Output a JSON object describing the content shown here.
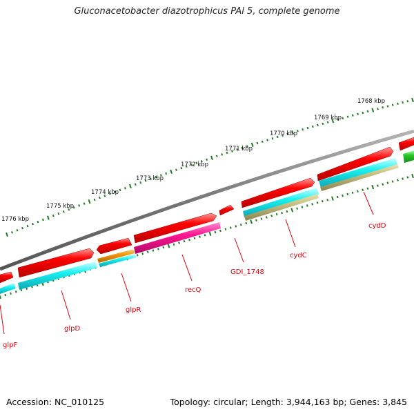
{
  "title": "Gluconacetobacter diazotrophicus PAl 5, complete genome",
  "footer": {
    "accession": "Accession: NC_010125",
    "topology": "Topology: circular; Length: 3,944,163 bp; Genes: 3,845"
  },
  "ruler": {
    "ticks": [
      {
        "label": "1776 kbp",
        "kbp": 1776
      },
      {
        "label": "1775 kbp",
        "kbp": 1775
      },
      {
        "label": "1774 kbp",
        "kbp": 1774
      },
      {
        "label": "1773 kbp",
        "kbp": 1773
      },
      {
        "label": "1772 kbp",
        "kbp": 1772
      },
      {
        "label": "1771 kbp",
        "kbp": 1771
      },
      {
        "label": "1770 kbp",
        "kbp": 1770
      },
      {
        "label": "1769 kbp",
        "kbp": 1769
      },
      {
        "label": "1768 kbp",
        "kbp": 1768
      }
    ]
  },
  "genes": [
    {
      "name": "glpF"
    },
    {
      "name": "glpD"
    },
    {
      "name": "glpR"
    },
    {
      "name": "recQ"
    },
    {
      "name": "GDI_1748"
    },
    {
      "name": "cydC"
    },
    {
      "name": "cydD"
    }
  ],
  "colors": {
    "backbone": "#7a7a7a",
    "cds": "#ee0000",
    "gene_label": "#e0000b",
    "tick": "#1e7a1e",
    "cyan": "#19f0f0",
    "magenta": "#ff1493",
    "orange": "#f0960a",
    "olive": "#b8b070",
    "green": "#28c828"
  }
}
